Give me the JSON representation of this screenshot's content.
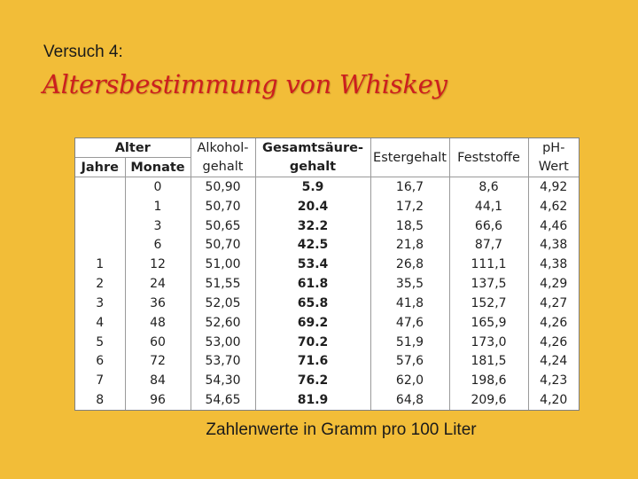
{
  "slide": {
    "pretitle": "Versuch 4:",
    "title": "Altersbestimmung von Whiskey",
    "caption": "Zahlenwerte in Gramm pro 100 Liter"
  },
  "colors": {
    "background": "#f2bd38",
    "title": "#cc1f1f",
    "table_bg": "#ffffff"
  },
  "table": {
    "headers": {
      "alter": "Alter",
      "jahre": "Jahre",
      "monate": "Monate",
      "alkohol_1": "Alkohol-",
      "alkohol_2": "gehalt",
      "saeure_1": "Gesamtsäure-",
      "saeure_2": "gehalt",
      "ester": "Estergehalt",
      "feststoffe": "Feststoffe",
      "ph_1": "pH-",
      "ph_2": "Wert"
    },
    "rows": [
      {
        "jahre": "",
        "monate": "0",
        "alkohol": "50,90",
        "saeure": "5.9",
        "ester": "16,7",
        "feststoffe": "8,6",
        "ph": "4,92"
      },
      {
        "jahre": "",
        "monate": "1",
        "alkohol": "50,70",
        "saeure": "20.4",
        "ester": "17,2",
        "feststoffe": "44,1",
        "ph": "4,62"
      },
      {
        "jahre": "",
        "monate": "3",
        "alkohol": "50,65",
        "saeure": "32.2",
        "ester": "18,5",
        "feststoffe": "66,6",
        "ph": "4,46"
      },
      {
        "jahre": "",
        "monate": "6",
        "alkohol": "50,70",
        "saeure": "42.5",
        "ester": "21,8",
        "feststoffe": "87,7",
        "ph": "4,38"
      },
      {
        "jahre": "1",
        "monate": "12",
        "alkohol": "51,00",
        "saeure": "53.4",
        "ester": "26,8",
        "feststoffe": "111,1",
        "ph": "4,38"
      },
      {
        "jahre": "2",
        "monate": "24",
        "alkohol": "51,55",
        "saeure": "61.8",
        "ester": "35,5",
        "feststoffe": "137,5",
        "ph": "4,29"
      },
      {
        "jahre": "3",
        "monate": "36",
        "alkohol": "52,05",
        "saeure": "65.8",
        "ester": "41,8",
        "feststoffe": "152,7",
        "ph": "4,27"
      },
      {
        "jahre": "4",
        "monate": "48",
        "alkohol": "52,60",
        "saeure": "69.2",
        "ester": "47,6",
        "feststoffe": "165,9",
        "ph": "4,26"
      },
      {
        "jahre": "5",
        "monate": "60",
        "alkohol": "53,00",
        "saeure": "70.2",
        "ester": "51,9",
        "feststoffe": "173,0",
        "ph": "4,26"
      },
      {
        "jahre": "6",
        "monate": "72",
        "alkohol": "53,70",
        "saeure": "71.6",
        "ester": "57,6",
        "feststoffe": "181,5",
        "ph": "4,24"
      },
      {
        "jahre": "7",
        "monate": "84",
        "alkohol": "54,30",
        "saeure": "76.2",
        "ester": "62,0",
        "feststoffe": "198,6",
        "ph": "4,23"
      },
      {
        "jahre": "8",
        "monate": "96",
        "alkohol": "54,65",
        "saeure": "81.9",
        "ester": "64,8",
        "feststoffe": "209,6",
        "ph": "4,20"
      }
    ]
  }
}
